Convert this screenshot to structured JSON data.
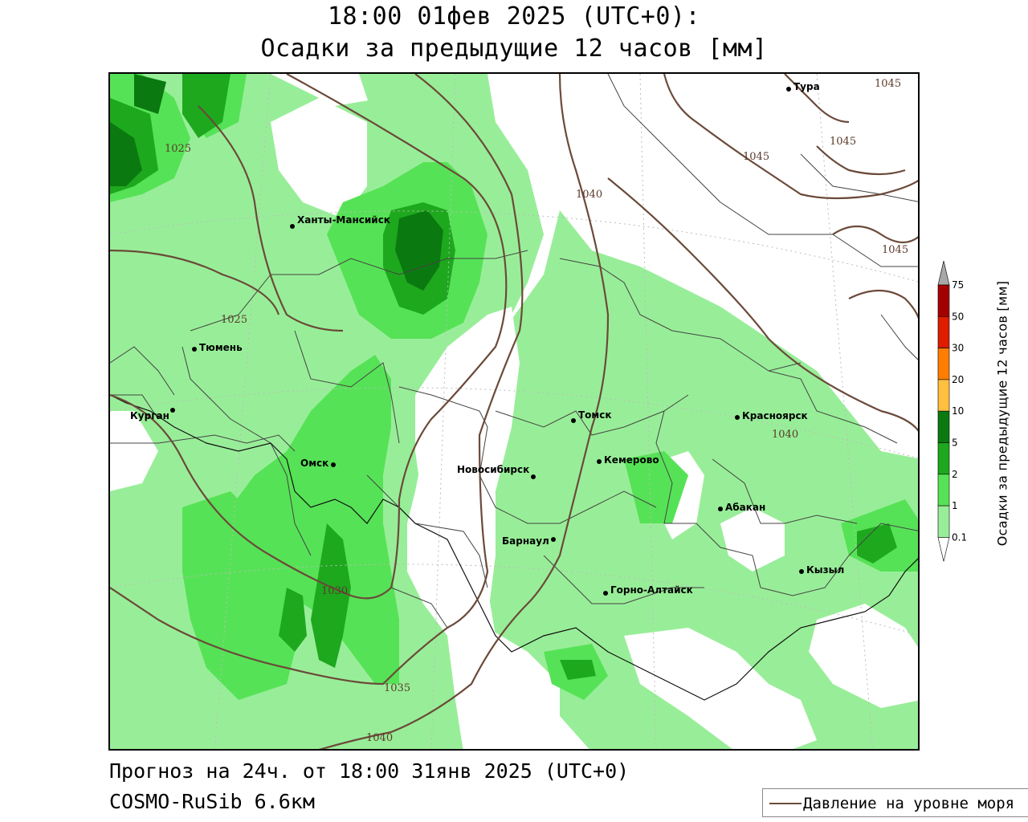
{
  "header": {
    "title_line1": "18:00 01фев 2025 (UTC+0):",
    "title_line2": "Осадки за предыдущие 12 часов [мм]"
  },
  "map": {
    "cities": [
      {
        "name": "Тура"
      },
      {
        "name": "Ханты-Мансийск"
      },
      {
        "name": "Тюмень"
      },
      {
        "name": "Курган"
      },
      {
        "name": "Омск"
      },
      {
        "name": "Томск"
      },
      {
        "name": "Красноярск"
      },
      {
        "name": "Новосибирск"
      },
      {
        "name": "Кемерово"
      },
      {
        "name": "Абакан"
      },
      {
        "name": "Барнаул"
      },
      {
        "name": "Горно-Алтайск"
      },
      {
        "name": "Кызыл"
      }
    ],
    "isobar_labels": [
      "1025",
      "1025",
      "1030",
      "1035",
      "1040",
      "1040",
      "1040",
      "1045",
      "1045",
      "1045",
      "1045"
    ]
  },
  "colorbar": {
    "title": "Осадки за предыдущие 12 часов [мм]",
    "levels": [
      "75",
      "50",
      "30",
      "20",
      "10",
      "5",
      "2",
      "1",
      "0.1"
    ],
    "colors": {
      "above_75": "#a8a8a8",
      "50_75": "#a50000",
      "30_50": "#dd1c00",
      "20_30": "#ff7d00",
      "10_20": "#ffc040",
      "5_10": "#0a7a10",
      "2_5": "#1ea81e",
      "1_2": "#56e256",
      "0.1_1": "#98ee98",
      "below_0.1": "#ffffff"
    }
  },
  "footer": {
    "forecast": "Прогноз на 24ч. от 18:00 31янв 2025 (UTC+0)",
    "model": "COSMO-RuSib 6.6км"
  },
  "legend": {
    "label": "Давление на уровне моря",
    "line_color": "#6b4a3a"
  }
}
